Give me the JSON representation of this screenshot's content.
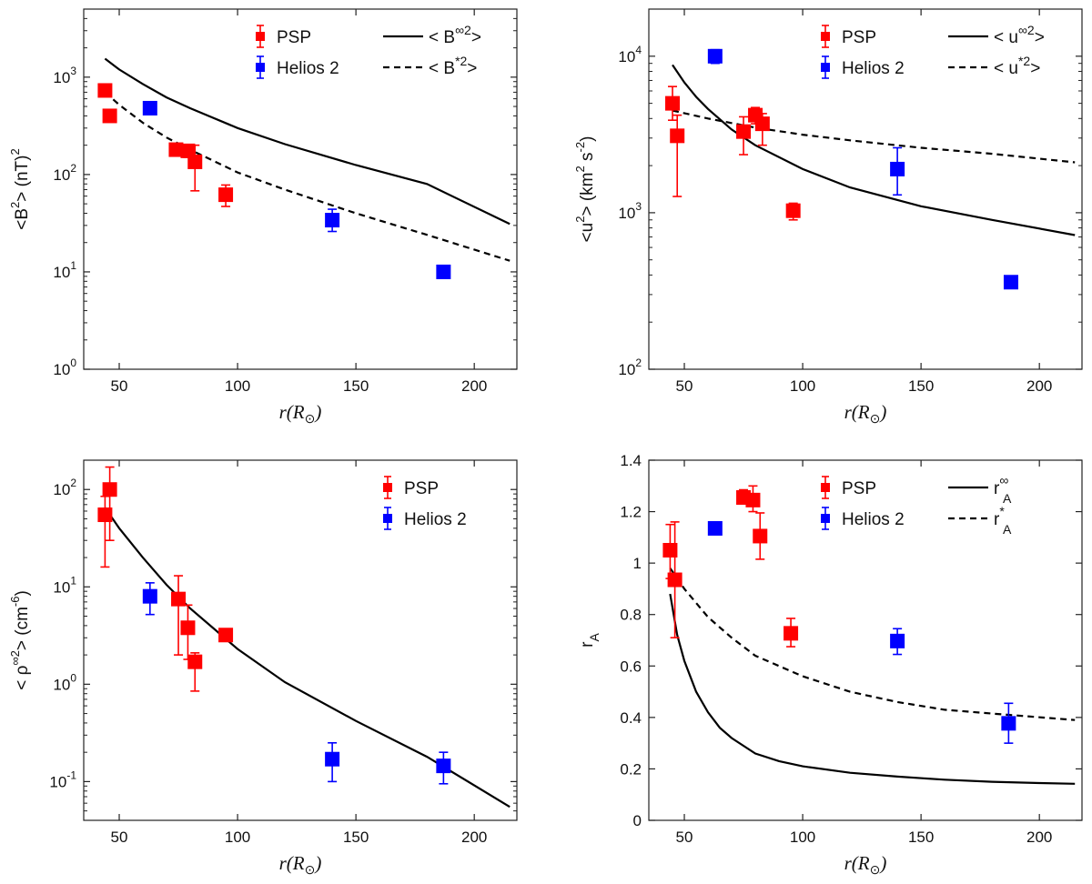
{
  "chart_data": [
    {
      "id": "B2",
      "type": "scatter",
      "yscale": "log",
      "xlim": [
        35,
        218
      ],
      "ylim": [
        1,
        5000
      ],
      "xticks": [
        50,
        100,
        150,
        200
      ],
      "yticks": [
        {
          "v": 1,
          "m": "10",
          "e": "0"
        },
        {
          "v": 10,
          "m": "10",
          "e": "1"
        },
        {
          "v": 100,
          "m": "10",
          "e": "2"
        },
        {
          "v": 1000,
          "m": "10",
          "e": "3"
        }
      ],
      "xlabel": {
        "main": "r(R",
        "sub": "⊙",
        "close": ")"
      },
      "ylabel": {
        "a": "<B",
        "sup": "2",
        "b": "> (nT)",
        "sup2": "2"
      },
      "legend": [
        {
          "kind": "marker",
          "color": "#ff0000",
          "label": "PSP"
        },
        {
          "kind": "marker",
          "color": "#0000ff",
          "label": "Helios 2"
        },
        {
          "kind": "line",
          "dash": "",
          "label": "< B",
          "sup": "∞2",
          "tail": ">"
        },
        {
          "kind": "line",
          "dash": "7,5",
          "label": "< B",
          "sup": "*2",
          "tail": ">"
        }
      ],
      "series": [
        {
          "name": "PSP",
          "kind": "points",
          "color": "#ff0000",
          "points": [
            {
              "x": 44,
              "y": 730,
              "lo": 650,
              "hi": 800
            },
            {
              "x": 46,
              "y": 400,
              "lo": 360,
              "hi": 440
            },
            {
              "x": 74,
              "y": 180,
              "lo": 160,
              "hi": 200
            },
            {
              "x": 79,
              "y": 175,
              "lo": 150,
              "hi": 195
            },
            {
              "x": 82,
              "y": 135,
              "lo": 68,
              "hi": 200
            },
            {
              "x": 95,
              "y": 62,
              "lo": 47,
              "hi": 78
            }
          ]
        },
        {
          "name": "Helios 2",
          "kind": "points",
          "color": "#0000ff",
          "points": [
            {
              "x": 63,
              "y": 480,
              "lo": 440,
              "hi": 520
            },
            {
              "x": 140,
              "y": 34,
              "lo": 26,
              "hi": 44
            },
            {
              "x": 187,
              "y": 10,
              "lo": 9.5,
              "hi": 10.5
            }
          ]
        },
        {
          "kind": "curve",
          "dash": "",
          "x": [
            44,
            50,
            60,
            70,
            80,
            100,
            120,
            150,
            180,
            215
          ],
          "y": [
            1550,
            1200,
            850,
            620,
            480,
            300,
            205,
            125,
            80,
            31
          ]
        },
        {
          "kind": "curve",
          "dash": "7,5",
          "x": [
            44,
            50,
            60,
            70,
            80,
            100,
            120,
            150,
            180,
            215
          ],
          "y": [
            700,
            520,
            340,
            240,
            180,
            105,
            70,
            40,
            24,
            13
          ]
        }
      ]
    },
    {
      "id": "u2",
      "type": "scatter",
      "yscale": "log",
      "xlim": [
        35,
        218
      ],
      "ylim": [
        100,
        20000
      ],
      "xticks": [
        50,
        100,
        150,
        200
      ],
      "yticks": [
        {
          "v": 100,
          "m": "10",
          "e": "2"
        },
        {
          "v": 1000,
          "m": "10",
          "e": "3"
        },
        {
          "v": 10000,
          "m": "10",
          "e": "4"
        }
      ],
      "xlabel": {
        "main": "r(R",
        "sub": "⊙",
        "close": ")"
      },
      "ylabel": {
        "a": "<u",
        "sup": "2",
        "b": "> (km",
        "sup2": "2",
        "c": " s",
        "sup3": "-2",
        "d": ")"
      },
      "legend": [
        {
          "kind": "marker",
          "color": "#ff0000",
          "label": "PSP"
        },
        {
          "kind": "marker",
          "color": "#0000ff",
          "label": "Helios 2"
        },
        {
          "kind": "line",
          "dash": "",
          "label": "< u",
          "sup": "∞2",
          "tail": ">"
        },
        {
          "kind": "line",
          "dash": "7,5",
          "label": "< u",
          "sup": "*2",
          "tail": ">"
        }
      ],
      "series": [
        {
          "name": "PSP",
          "kind": "points",
          "color": "#ff0000",
          "points": [
            {
              "x": 45,
              "y": 5000,
              "lo": 3900,
              "hi": 6400
            },
            {
              "x": 47,
              "y": 3100,
              "lo": 1270,
              "hi": 4200
            },
            {
              "x": 75,
              "y": 3300,
              "lo": 2350,
              "hi": 4100
            },
            {
              "x": 80,
              "y": 4200,
              "lo": 3700,
              "hi": 4700
            },
            {
              "x": 83,
              "y": 3700,
              "lo": 2700,
              "hi": 4300
            },
            {
              "x": 96,
              "y": 1030,
              "lo": 900,
              "hi": 1150
            }
          ]
        },
        {
          "name": "Helios 2",
          "kind": "points",
          "color": "#0000ff",
          "points": [
            {
              "x": 63,
              "y": 10000,
              "lo": 9000,
              "hi": 11000
            },
            {
              "x": 140,
              "y": 1900,
              "lo": 1300,
              "hi": 2600
            },
            {
              "x": 188,
              "y": 360,
              "lo": 345,
              "hi": 375
            }
          ]
        },
        {
          "kind": "curve",
          "dash": "",
          "x": [
            45,
            50,
            55,
            60,
            70,
            80,
            100,
            120,
            150,
            180,
            215
          ],
          "y": [
            8800,
            6800,
            5500,
            4600,
            3400,
            2700,
            1900,
            1450,
            1100,
            900,
            720
          ]
        },
        {
          "kind": "curve",
          "dash": "7,5",
          "x": [
            45,
            60,
            80,
            100,
            120,
            150,
            180,
            215
          ],
          "y": [
            4500,
            4000,
            3500,
            3150,
            2900,
            2600,
            2380,
            2100
          ]
        }
      ]
    },
    {
      "id": "rho2",
      "type": "scatter",
      "yscale": "log",
      "xlim": [
        35,
        218
      ],
      "ylim": [
        0.04,
        200
      ],
      "xticks": [
        50,
        100,
        150,
        200
      ],
      "yticks": [
        {
          "v": 0.1,
          "m": "10",
          "e": "-1"
        },
        {
          "v": 1,
          "m": "10",
          "e": "0"
        },
        {
          "v": 10,
          "m": "10",
          "e": "1"
        },
        {
          "v": 100,
          "m": "10",
          "e": "2"
        }
      ],
      "xlabel": {
        "main": "r(R",
        "sub": "⊙",
        "close": ")"
      },
      "ylabel": {
        "a": "< ρ",
        "sup": "∞2",
        "b": "> (cm",
        "sup2": "-6",
        "c": ")"
      },
      "legend": [
        {
          "kind": "marker",
          "color": "#ff0000",
          "label": "PSP"
        },
        {
          "kind": "marker",
          "color": "#0000ff",
          "label": "Helios 2"
        }
      ],
      "series": [
        {
          "name": "PSP",
          "kind": "points",
          "color": "#ff0000",
          "points": [
            {
              "x": 44,
              "y": 55,
              "lo": 16,
              "hi": 85
            },
            {
              "x": 46,
              "y": 100,
              "lo": 30,
              "hi": 170
            },
            {
              "x": 75,
              "y": 7.5,
              "lo": 2,
              "hi": 13
            },
            {
              "x": 79,
              "y": 3.8,
              "lo": 1.8,
              "hi": 6.5
            },
            {
              "x": 82,
              "y": 1.7,
              "lo": 0.85,
              "hi": 2.1
            },
            {
              "x": 95,
              "y": 3.2,
              "lo": 3,
              "hi": 3.4
            }
          ]
        },
        {
          "name": "Helios 2",
          "kind": "points",
          "color": "#0000ff",
          "points": [
            {
              "x": 63,
              "y": 8,
              "lo": 5.2,
              "hi": 11
            },
            {
              "x": 140,
              "y": 0.17,
              "lo": 0.1,
              "hi": 0.25
            },
            {
              "x": 187,
              "y": 0.145,
              "lo": 0.095,
              "hi": 0.2
            }
          ]
        },
        {
          "kind": "curve",
          "dash": "",
          "x": [
            44,
            50,
            60,
            70,
            80,
            100,
            120,
            150,
            180,
            215
          ],
          "y": [
            65,
            40,
            20,
            10.5,
            6,
            2.3,
            1.05,
            0.42,
            0.18,
            0.055
          ]
        }
      ]
    },
    {
      "id": "rA",
      "type": "scatter",
      "yscale": "linear",
      "xlim": [
        35,
        218
      ],
      "ylim": [
        0,
        1.4
      ],
      "xticks": [
        50,
        100,
        150,
        200
      ],
      "yticks": [
        {
          "v": 0,
          "t": "0"
        },
        {
          "v": 0.2,
          "t": "0.2"
        },
        {
          "v": 0.4,
          "t": "0.4"
        },
        {
          "v": 0.6,
          "t": "0.6"
        },
        {
          "v": 0.8,
          "t": "0.8"
        },
        {
          "v": 1,
          "t": "1"
        },
        {
          "v": 1.2,
          "t": "1.2"
        },
        {
          "v": 1.4,
          "t": "1.4"
        }
      ],
      "xlabel": {
        "main": "r(R",
        "sub": "⊙",
        "close": ")"
      },
      "ylabel": {
        "a": "r",
        "sub": "A"
      },
      "legend": [
        {
          "kind": "marker",
          "color": "#ff0000",
          "label": "PSP"
        },
        {
          "kind": "marker",
          "color": "#0000ff",
          "label": "Helios 2"
        },
        {
          "kind": "line",
          "dash": "",
          "label": "r",
          "sup": "∞",
          "subl": "A"
        },
        {
          "kind": "line",
          "dash": "7,5",
          "label": "r",
          "sup": "*",
          "subl": "A"
        }
      ],
      "series": [
        {
          "name": "PSP",
          "kind": "points",
          "color": "#ff0000",
          "points": [
            {
              "x": 44,
              "y": 1.05,
              "lo": 0.94,
              "hi": 1.15
            },
            {
              "x": 46,
              "y": 0.935,
              "lo": 0.71,
              "hi": 1.16
            },
            {
              "x": 75,
              "y": 1.255,
              "lo": 1.23,
              "hi": 1.285
            },
            {
              "x": 79,
              "y": 1.245,
              "lo": 1.2,
              "hi": 1.3
            },
            {
              "x": 82,
              "y": 1.105,
              "lo": 1.015,
              "hi": 1.195
            },
            {
              "x": 95,
              "y": 0.727,
              "lo": 0.675,
              "hi": 0.785
            }
          ]
        },
        {
          "name": "Helios 2",
          "kind": "points",
          "color": "#0000ff",
          "points": [
            {
              "x": 63,
              "y": 1.135,
              "lo": 1.12,
              "hi": 1.15
            },
            {
              "x": 140,
              "y": 0.697,
              "lo": 0.645,
              "hi": 0.745
            },
            {
              "x": 187,
              "y": 0.377,
              "lo": 0.3,
              "hi": 0.455
            }
          ]
        },
        {
          "kind": "curve",
          "dash": "",
          "x": [
            44,
            47,
            50,
            55,
            60,
            65,
            70,
            80,
            90,
            100,
            120,
            140,
            160,
            180,
            200,
            215
          ],
          "y": [
            0.88,
            0.72,
            0.62,
            0.5,
            0.42,
            0.36,
            0.32,
            0.26,
            0.23,
            0.21,
            0.185,
            0.17,
            0.158,
            0.15,
            0.145,
            0.142
          ]
        },
        {
          "kind": "curve",
          "dash": "7,5",
          "x": [
            44,
            50,
            60,
            70,
            80,
            100,
            120,
            140,
            160,
            180,
            215
          ],
          "y": [
            0.98,
            0.9,
            0.79,
            0.71,
            0.64,
            0.56,
            0.5,
            0.46,
            0.43,
            0.415,
            0.39
          ]
        }
      ]
    }
  ]
}
